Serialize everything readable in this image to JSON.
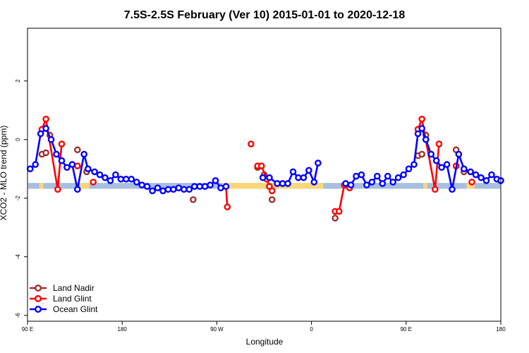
{
  "chart_data": {
    "type": "line",
    "title": "7.5S-2.5S February (Ver 10)   2015-01-01 to 2020-12-18",
    "xlabel": "Longitude",
    "ylabel": "XCO2 - MLO trend (ppm)",
    "xlim": [
      0,
      360
    ],
    "ylim": [
      -6.2,
      3.8
    ],
    "x_ticks": [
      {
        "value": 0,
        "label": "90 E"
      },
      {
        "value": 72,
        "label": "180"
      },
      {
        "value": 144,
        "label": "90 W"
      },
      {
        "value": 216,
        "label": "0"
      },
      {
        "value": 288,
        "label": "90 E"
      },
      {
        "value": 360,
        "label": "180"
      }
    ],
    "y_ticks": [
      {
        "value": 2,
        "label": "2"
      },
      {
        "value": 0,
        "label": "0"
      },
      {
        "value": -2,
        "label": "-2"
      },
      {
        "value": -4,
        "label": "-4"
      },
      {
        "value": -6,
        "label": "-6"
      }
    ],
    "legend": {
      "position": "bottom-left"
    },
    "colors": {
      "land_nadir": "#a0302e",
      "land_glint": "#ff0000",
      "ocean_glint": "#0000ff",
      "band_ocean": "#a7bfe0",
      "band_land": "#f9d77a"
    },
    "band": {
      "y": -1.58,
      "thickness": 0.2,
      "land_ranges": [
        [
          9,
          12
        ],
        [
          40,
          47
        ],
        [
          148,
          225
        ],
        [
          301,
          304
        ],
        [
          334,
          340
        ]
      ]
    },
    "series": [
      {
        "name": "Land Nadir",
        "key": "land_nadir",
        "points": [
          [
            11,
            -0.5
          ],
          [
            14,
            -0.45
          ],
          [
            17,
            0.15
          ],
          [
            38,
            -0.35
          ],
          [
            45,
            -1.1
          ],
          [
            126,
            -2.05
          ],
          [
            175,
            -0.95
          ],
          [
            180,
            -1.2
          ],
          [
            186,
            -2.05
          ],
          [
            234,
            -2.68
          ],
          [
            297,
            -0.55
          ],
          [
            300,
            -0.5
          ],
          [
            303,
            0.15
          ],
          [
            326,
            -0.35
          ],
          [
            332,
            -1.1
          ]
        ],
        "segments": []
      },
      {
        "name": "Land Glint",
        "key": "land_glint",
        "points": [
          [
            11,
            0.35
          ],
          [
            14,
            0.7
          ],
          [
            23,
            -1.7
          ],
          [
            26,
            -0.15
          ],
          [
            38,
            -0.9
          ],
          [
            50,
            -1.45
          ],
          [
            152,
            -2.3
          ],
          [
            170,
            -0.15
          ],
          [
            175,
            -0.9
          ],
          [
            178,
            -0.9
          ],
          [
            182,
            -1.35
          ],
          [
            184,
            -1.6
          ],
          [
            186,
            -1.75
          ],
          [
            234,
            -2.45
          ],
          [
            237,
            -2.45
          ],
          [
            241,
            -1.55
          ],
          [
            245,
            -1.65
          ],
          [
            297,
            0.35
          ],
          [
            300,
            0.7
          ],
          [
            310,
            -1.7
          ],
          [
            313,
            -0.15
          ],
          [
            326,
            -0.9
          ],
          [
            338,
            -1.45
          ]
        ],
        "segments": [
          [
            [
              11,
              0.35
            ],
            [
              14,
              0.7
            ],
            [
              23,
              -1.7
            ],
            [
              26,
              -0.15
            ]
          ],
          [
            [
              152,
              -2.3
            ],
            [
              151,
              -1.6
            ]
          ],
          [
            [
              178,
              -0.9
            ],
            [
              182,
              -1.35
            ],
            [
              184,
              -1.6
            ],
            [
              186,
              -1.75
            ]
          ],
          [
            [
              234,
              -2.45
            ],
            [
              237,
              -2.45
            ],
            [
              241,
              -1.55
            ],
            [
              245,
              -1.65
            ]
          ],
          [
            [
              297,
              0.35
            ],
            [
              300,
              0.7
            ],
            [
              310,
              -1.7
            ],
            [
              313,
              -0.15
            ]
          ]
        ]
      },
      {
        "name": "Ocean Glint",
        "key": "ocean_glint",
        "points": [
          [
            2,
            -1.0
          ],
          [
            6,
            -0.85
          ],
          [
            10,
            0.2
          ],
          [
            14,
            0.38
          ],
          [
            18,
            0.0
          ],
          [
            22,
            -0.5
          ],
          [
            26,
            -0.72
          ],
          [
            30,
            -0.95
          ],
          [
            34,
            -0.85
          ],
          [
            38,
            -1.7
          ],
          [
            43,
            -0.5
          ],
          [
            46,
            -1.0
          ],
          [
            51,
            -1.1
          ],
          [
            55,
            -1.2
          ],
          [
            59,
            -1.3
          ],
          [
            63,
            -1.4
          ],
          [
            67,
            -1.2
          ],
          [
            71,
            -1.35
          ],
          [
            75,
            -1.35
          ],
          [
            79,
            -1.35
          ],
          [
            83,
            -1.45
          ],
          [
            87,
            -1.55
          ],
          [
            91,
            -1.6
          ],
          [
            95,
            -1.75
          ],
          [
            99,
            -1.65
          ],
          [
            103,
            -1.75
          ],
          [
            107,
            -1.7
          ],
          [
            111,
            -1.7
          ],
          [
            115,
            -1.65
          ],
          [
            119,
            -1.7
          ],
          [
            123,
            -1.7
          ],
          [
            127,
            -1.6
          ],
          [
            131,
            -1.6
          ],
          [
            135,
            -1.6
          ],
          [
            139,
            -1.55
          ],
          [
            143,
            -1.4
          ],
          [
            147,
            -1.65
          ],
          [
            151,
            -1.6
          ],
          [
            179,
            -1.3
          ],
          [
            184,
            -1.3
          ],
          [
            190,
            -1.5
          ],
          [
            194,
            -1.5
          ],
          [
            198,
            -1.5
          ],
          [
            202,
            -1.1
          ],
          [
            206,
            -1.3
          ],
          [
            210,
            -1.3
          ],
          [
            214,
            -1.05
          ],
          [
            218,
            -1.45
          ],
          [
            221,
            -0.8
          ],
          [
            242,
            -1.5
          ],
          [
            246,
            -1.55
          ],
          [
            250,
            -1.25
          ],
          [
            254,
            -1.2
          ],
          [
            258,
            -1.55
          ],
          [
            262,
            -1.45
          ],
          [
            266,
            -1.25
          ],
          [
            270,
            -1.5
          ],
          [
            274,
            -1.25
          ],
          [
            278,
            -1.45
          ],
          [
            282,
            -1.3
          ],
          [
            286,
            -1.2
          ],
          [
            290,
            -1.0
          ],
          [
            294,
            -0.85
          ],
          [
            297,
            0.2
          ],
          [
            300,
            0.38
          ],
          [
            303,
            0.0
          ],
          [
            307,
            -0.5
          ],
          [
            311,
            -0.72
          ],
          [
            315,
            -0.95
          ],
          [
            319,
            -0.85
          ],
          [
            323,
            -1.7
          ],
          [
            328,
            -0.5
          ],
          [
            332,
            -1.0
          ],
          [
            337,
            -1.1
          ],
          [
            341,
            -1.2
          ],
          [
            345,
            -1.3
          ],
          [
            349,
            -1.4
          ],
          [
            353,
            -1.2
          ],
          [
            357,
            -1.35
          ],
          [
            360,
            -1.4
          ]
        ],
        "segments": [
          [
            0,
            37
          ],
          [
            38,
            48
          ],
          [
            49,
            80
          ]
        ]
      }
    ]
  }
}
